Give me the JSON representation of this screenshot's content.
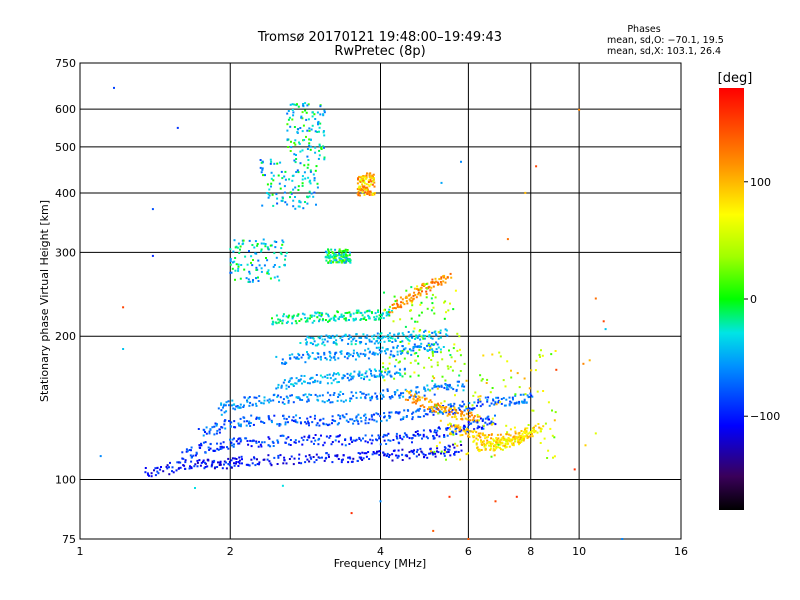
{
  "chart_data": {
    "type": "scatter",
    "title": "Tromsø 20170121 19:48:00–19:49:43",
    "subtitle": "RwPretec (8p)",
    "xlabel": "Frequency [MHz]",
    "ylabel": "Stationary phase Virtual Height [km]",
    "x_scale": "log",
    "y_scale": "log",
    "xlim": [
      1,
      16
    ],
    "ylim": [
      75,
      750
    ],
    "x_ticks": [
      1,
      2,
      4,
      6,
      8,
      10,
      16
    ],
    "y_ticks": [
      75,
      100,
      200,
      300,
      400,
      500,
      600,
      750
    ],
    "x_tick_labels": [
      "1",
      "2",
      "4",
      "6",
      "8",
      "10",
      "16"
    ],
    "y_tick_labels": [
      "75",
      "100",
      "200",
      "300",
      "400",
      "500",
      "600",
      "750"
    ],
    "grid": true,
    "phases": {
      "heading": "Phases",
      "o_stats": "mean, sd,O: −70.1, 19.5",
      "x_stats": "mean, sd,X: 103.1, 26.4"
    },
    "colorbar": {
      "label": "[deg]",
      "range": [
        -180,
        180
      ],
      "ticks": [
        100,
        0,
        -100
      ],
      "tick_labels": [
        "100",
        "0",
        "−100"
      ],
      "colormap": "rainbow"
    },
    "traces": [
      {
        "f": [
          1.35,
          1.55,
          1.75,
          1.95,
          2.1,
          2.5,
          3.0,
          3.5,
          4.0,
          4.6,
          5.2,
          5.8
        ],
        "h": [
          103,
          106,
          108,
          108,
          109,
          110,
          111,
          111,
          112,
          113,
          114,
          116
        ],
        "phase": -105
      },
      {
        "f": [
          1.6,
          1.8,
          2.0,
          2.3,
          2.7,
          3.2,
          3.8,
          4.4,
          5.0,
          5.6,
          6.2,
          6.8
        ],
        "h": [
          112,
          117,
          119,
          120,
          121,
          121,
          121,
          122,
          124,
          127,
          130,
          134
        ],
        "phase": -90
      },
      {
        "f": [
          1.75,
          1.95,
          2.2,
          2.6,
          3.0,
          3.5,
          4.0,
          4.6,
          5.2,
          5.8,
          6.5,
          7.4,
          8.0
        ],
        "h": [
          125,
          130,
          133,
          133,
          133,
          134,
          135,
          137,
          139,
          142,
          145,
          147,
          148
        ],
        "phase": -75
      },
      {
        "f": [
          1.9,
          2.1,
          2.4,
          2.8,
          3.3,
          3.9,
          4.5,
          5.2,
          5.9
        ],
        "h": [
          140,
          145,
          147,
          148,
          149,
          150,
          152,
          155,
          158
        ],
        "phase": -60
      },
      {
        "f": [
          2.5,
          2.8,
          3.2,
          3.6,
          4.0,
          4.5
        ],
        "h": [
          158,
          162,
          163,
          165,
          167,
          170
        ],
        "phase": -50
      },
      {
        "f": [
          2.5,
          2.9,
          3.3,
          3.8,
          4.3,
          4.8,
          5.3
        ],
        "h": [
          178,
          181,
          182,
          184,
          186,
          188,
          190
        ],
        "phase": -55
      },
      {
        "f": [
          2.8,
          3.1,
          3.5,
          3.9,
          4.3,
          4.8,
          5.5
        ],
        "h": [
          195,
          196,
          197,
          198,
          199,
          200,
          202
        ],
        "phase": -45
      },
      {
        "f": [
          2.4,
          2.7,
          3.0,
          3.3,
          3.6,
          3.9,
          4.2
        ],
        "h": [
          216,
          218,
          219,
          220,
          221,
          222,
          223
        ],
        "phase": -20
      },
      {
        "f": [
          4.2,
          4.5,
          4.8,
          5.1,
          5.5
        ],
        "h": [
          230,
          238,
          248,
          258,
          265
        ],
        "phase": 120
      },
      {
        "f": [
          4.5,
          4.9,
          5.3,
          5.8,
          6.3
        ],
        "h": [
          150,
          145,
          140,
          137,
          135
        ],
        "phase": 110
      },
      {
        "f": [
          5.5,
          6.0,
          6.5,
          7.0,
          7.5,
          8.0
        ],
        "h": [
          128,
          125,
          122,
          121,
          123,
          126
        ],
        "phase": 95
      },
      {
        "f": [
          6.2,
          6.6,
          7.0,
          7.4,
          7.8,
          8.4
        ],
        "h": [
          118,
          117,
          118,
          120,
          124,
          130
        ],
        "phase": 80
      }
    ],
    "clouds": [
      {
        "f_range": [
          2.0,
          2.6
        ],
        "h_range": [
          260,
          320
        ],
        "phase": -30
      },
      {
        "f_range": [
          2.3,
          3.0
        ],
        "h_range": [
          370,
          470
        ],
        "phase": -35
      },
      {
        "f_range": [
          2.6,
          3.1
        ],
        "h_range": [
          470,
          620
        ],
        "phase": -25
      },
      {
        "f_range": [
          3.1,
          3.5
        ],
        "h_range": [
          285,
          305
        ],
        "phase": -15
      },
      {
        "f_range": [
          3.6,
          3.9
        ],
        "h_range": [
          395,
          440
        ],
        "phase": 100
      },
      {
        "f_range": [
          4.0,
          5.8
        ],
        "h_range": [
          160,
          260
        ],
        "phase": 30
      },
      {
        "f_range": [
          5.0,
          9.0
        ],
        "h_range": [
          110,
          190
        ],
        "phase": 60
      }
    ],
    "sparse": [
      {
        "f": 1.17,
        "h": 665,
        "phase": -85
      },
      {
        "f": 1.57,
        "h": 548,
        "phase": -90
      },
      {
        "f": 1.22,
        "h": 230,
        "phase": 150
      },
      {
        "f": 1.22,
        "h": 188,
        "phase": -40
      },
      {
        "f": 1.4,
        "h": 370,
        "phase": -80
      },
      {
        "f": 1.4,
        "h": 295,
        "phase": -95
      },
      {
        "f": 1.1,
        "h": 112,
        "phase": -60
      },
      {
        "f": 1.7,
        "h": 96,
        "phase": -30
      },
      {
        "f": 5.8,
        "h": 465,
        "phase": -60
      },
      {
        "f": 5.3,
        "h": 420,
        "phase": -50
      },
      {
        "f": 7.8,
        "h": 400,
        "phase": 100
      },
      {
        "f": 8.2,
        "h": 455,
        "phase": 150
      },
      {
        "f": 10.0,
        "h": 598,
        "phase": 120
      },
      {
        "f": 7.2,
        "h": 320,
        "phase": 130
      },
      {
        "f": 10.8,
        "h": 240,
        "phase": 130
      },
      {
        "f": 11.2,
        "h": 215,
        "phase": 150
      },
      {
        "f": 11.3,
        "h": 207,
        "phase": -40
      },
      {
        "f": 12.2,
        "h": 75,
        "phase": -60
      },
      {
        "f": 5.1,
        "h": 78,
        "phase": 140
      },
      {
        "f": 5.5,
        "h": 92,
        "phase": 160
      },
      {
        "f": 7.5,
        "h": 92,
        "phase": 160
      },
      {
        "f": 4.0,
        "h": 90,
        "phase": -60
      },
      {
        "f": 3.5,
        "h": 85,
        "phase": 160
      },
      {
        "f": 2.55,
        "h": 97,
        "phase": -30
      },
      {
        "f": 10.3,
        "h": 118,
        "phase": 90
      },
      {
        "f": 9.8,
        "h": 105,
        "phase": 160
      },
      {
        "f": 10.8,
        "h": 125,
        "phase": 60
      },
      {
        "f": 9.0,
        "h": 170,
        "phase": 150
      },
      {
        "f": 10.2,
        "h": 175,
        "phase": 120
      },
      {
        "f": 10.5,
        "h": 178,
        "phase": 100
      },
      {
        "f": 6.8,
        "h": 90,
        "phase": 150
      },
      {
        "f": 6.0,
        "h": 75,
        "phase": 140
      }
    ]
  }
}
